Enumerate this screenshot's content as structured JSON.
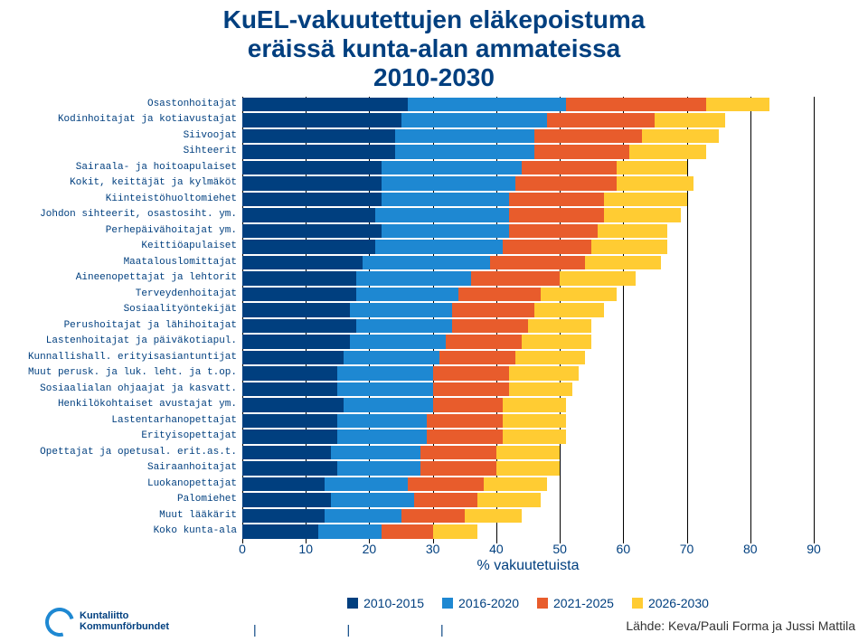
{
  "title_l1": "KuEL-vakuutettujen eläkepoistuma",
  "title_l2": "eräissä kunta-alan ammateissa",
  "title_l3": "2010-2030",
  "x_label": "% vakuutetuista",
  "xmax": 90,
  "xtick_step": 10,
  "xticks": [
    "0",
    "10",
    "20",
    "30",
    "40",
    "50",
    "60",
    "70",
    "80",
    "90"
  ],
  "series_colors": [
    "#003f7f",
    "#1e88d2",
    "#e85c2c",
    "#ffcc33"
  ],
  "legend": [
    "2010-2015",
    "2016-2020",
    "2021-2025",
    "2026-2030"
  ],
  "background_color": "#ffffff",
  "grid_color": "#000000",
  "label_color": "#003f7f",
  "label_font": "Courier New",
  "label_fontsize": 11,
  "footer_ticks": "|   |   |",
  "logo_text1": "Kuntaliitto",
  "logo_text2": "Kommunförbundet",
  "source": "Lähde: Keva/Pauli Forma ja Jussi Mattila",
  "rows": [
    {
      "label": "Osastonhoitajat",
      "v": [
        26,
        25,
        22,
        10
      ]
    },
    {
      "label": "Kodinhoitajat ja kotiavustajat",
      "v": [
        25,
        23,
        17,
        11
      ]
    },
    {
      "label": "Siivoojat",
      "v": [
        24,
        22,
        17,
        12
      ]
    },
    {
      "label": "Sihteerit",
      "v": [
        24,
        22,
        15,
        12
      ]
    },
    {
      "label": "Sairaala- ja hoitoapulaiset",
      "v": [
        22,
        22,
        15,
        11
      ]
    },
    {
      "label": "Kokit, keittäjät ja kylmäköt",
      "v": [
        22,
        21,
        16,
        12
      ]
    },
    {
      "label": "Kiinteistöhuoltomiehet",
      "v": [
        22,
        20,
        15,
        13
      ]
    },
    {
      "label": "Johdon sihteerit, osastosiht. ym.",
      "v": [
        21,
        21,
        15,
        12
      ]
    },
    {
      "label": "Perhepäivähoitajat ym.",
      "v": [
        22,
        20,
        14,
        11
      ]
    },
    {
      "label": "Keittiöapulaiset",
      "v": [
        21,
        20,
        14,
        12
      ]
    },
    {
      "label": "Maatalouslomittajat",
      "v": [
        19,
        20,
        15,
        12
      ]
    },
    {
      "label": "Aineenopettajat ja lehtorit",
      "v": [
        18,
        18,
        14,
        12
      ]
    },
    {
      "label": "Terveydenhoitajat",
      "v": [
        18,
        16,
        13,
        12
      ]
    },
    {
      "label": "Sosiaalityöntekijät",
      "v": [
        17,
        16,
        13,
        11
      ]
    },
    {
      "label": "Perushoitajat ja lähihoitajat",
      "v": [
        18,
        15,
        12,
        10
      ]
    },
    {
      "label": "Lastenhoitajat ja päiväkotiapul.",
      "v": [
        17,
        15,
        12,
        11
      ]
    },
    {
      "label": "Kunnallishall. erityisasiantuntijat",
      "v": [
        16,
        15,
        12,
        11
      ]
    },
    {
      "label": "Muut perusk. ja luk. leht. ja t.op.",
      "v": [
        15,
        15,
        12,
        11
      ]
    },
    {
      "label": "Sosiaalialan ohjaajat ja kasvatt.",
      "v": [
        15,
        15,
        12,
        10
      ]
    },
    {
      "label": "Henkilökohtaiset avustajat ym.",
      "v": [
        16,
        14,
        11,
        10
      ]
    },
    {
      "label": "Lastentarhanopettajat",
      "v": [
        15,
        14,
        12,
        10
      ]
    },
    {
      "label": "Erityisopettajat",
      "v": [
        15,
        14,
        12,
        10
      ]
    },
    {
      "label": "Opettajat ja opetusal. erit.as.t.",
      "v": [
        14,
        14,
        12,
        10
      ]
    },
    {
      "label": "Sairaanhoitajat",
      "v": [
        15,
        13,
        12,
        10
      ]
    },
    {
      "label": "Luokanopettajat",
      "v": [
        13,
        13,
        12,
        10
      ]
    },
    {
      "label": "Palomiehet",
      "v": [
        14,
        13,
        10,
        10
      ]
    },
    {
      "label": "Muut lääkärit",
      "v": [
        13,
        12,
        10,
        9
      ]
    },
    {
      "label": "Koko kunta-ala",
      "v": [
        12,
        10,
        8,
        7
      ]
    }
  ]
}
